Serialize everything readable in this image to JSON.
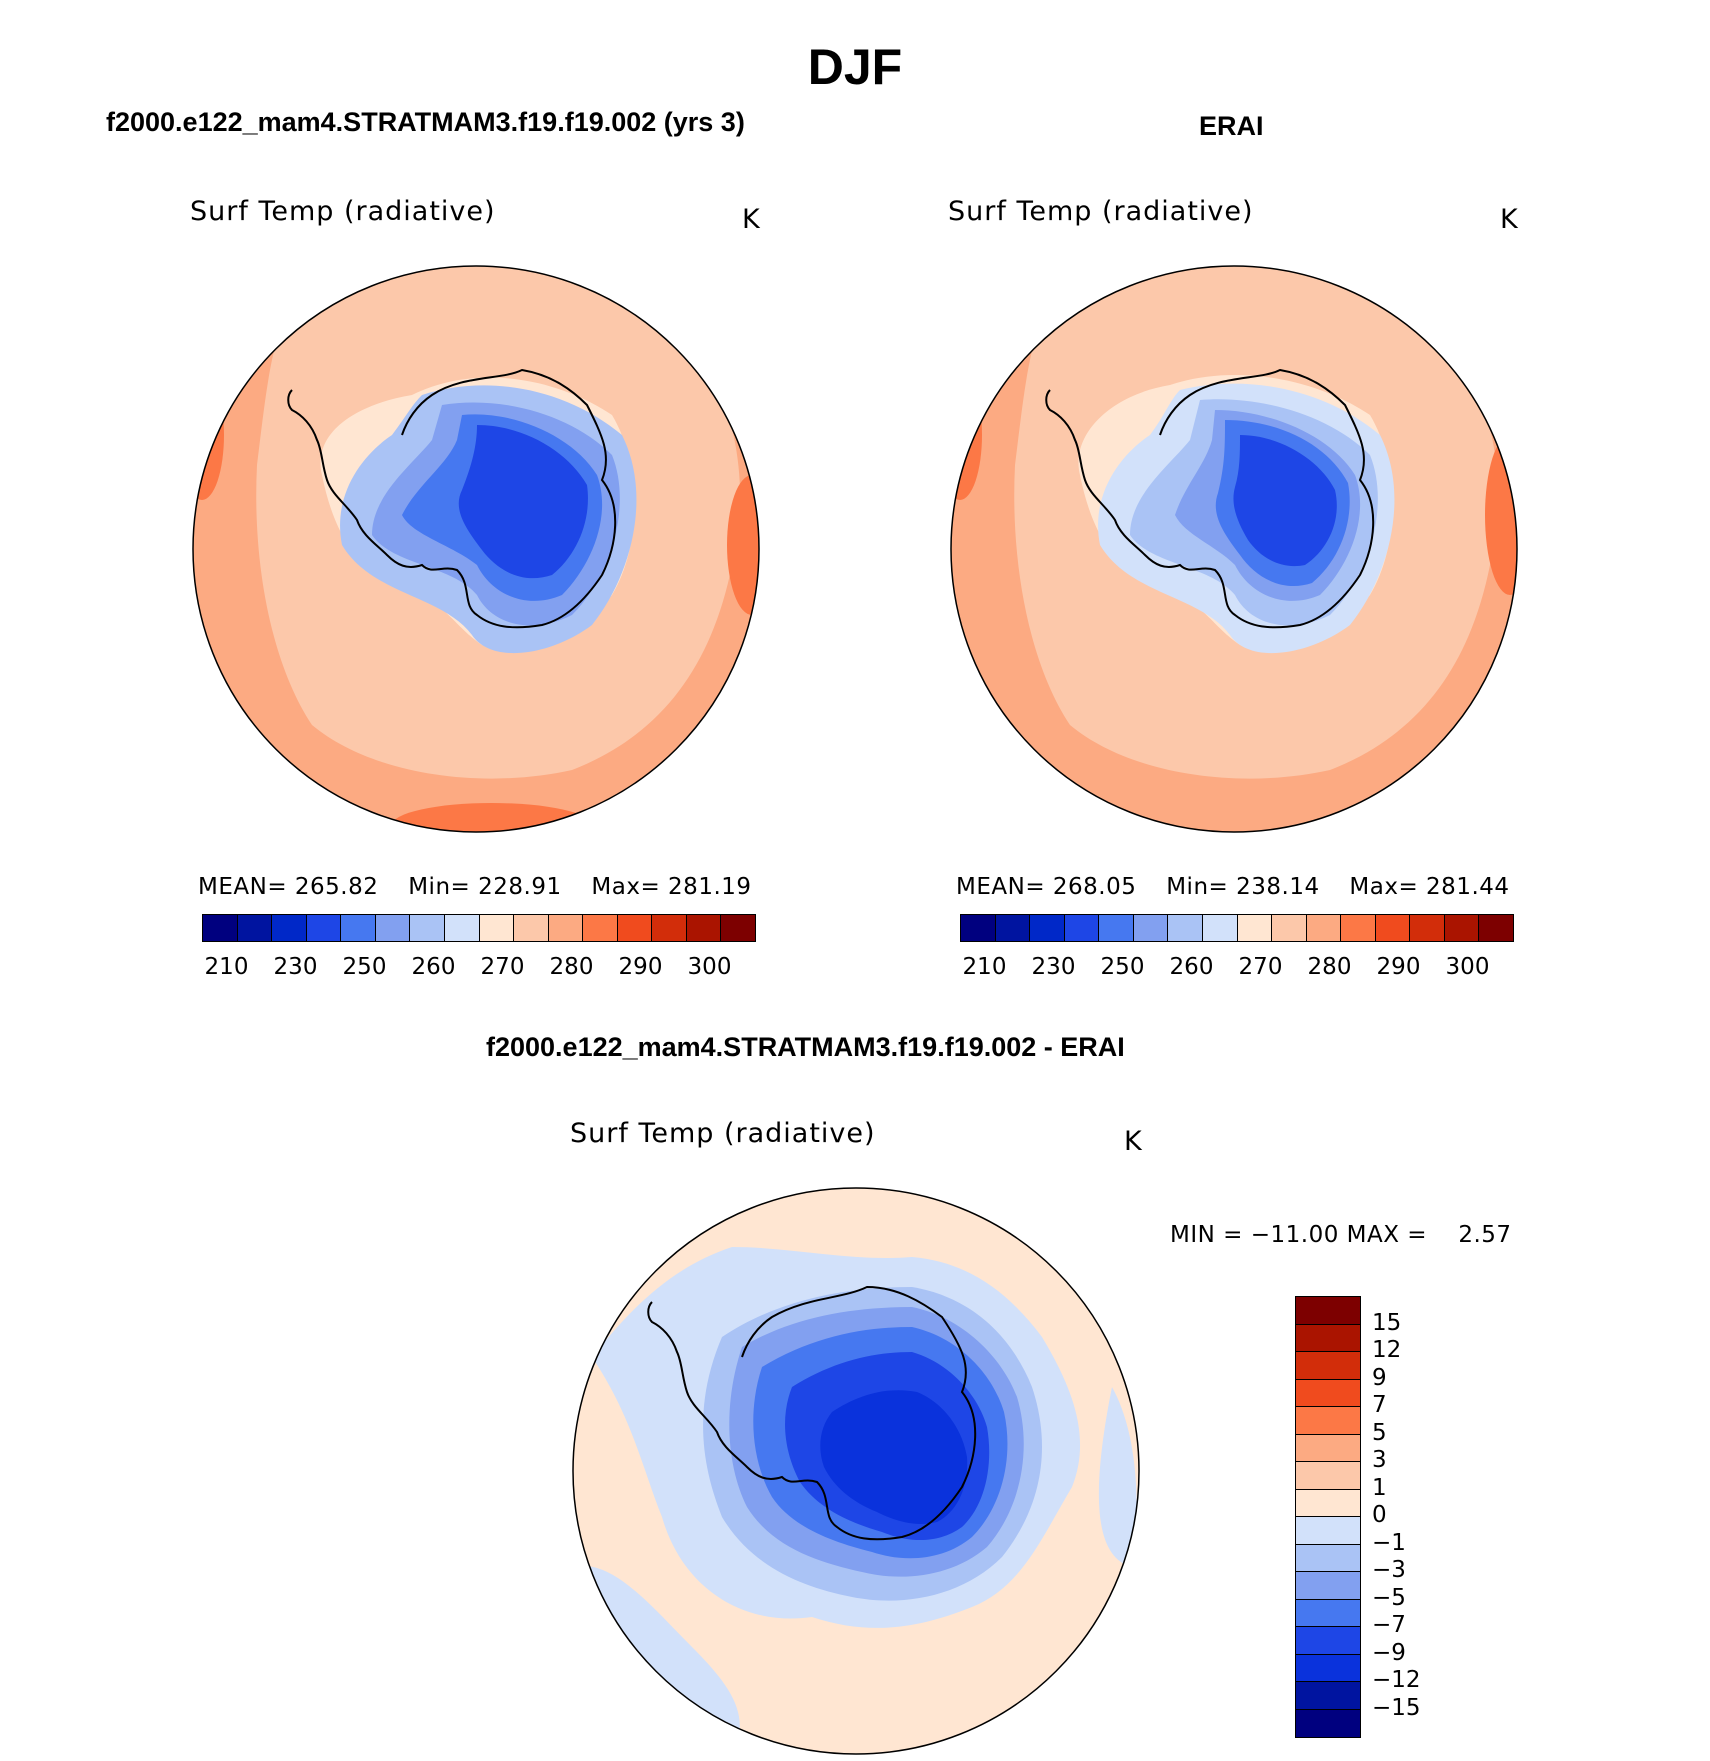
{
  "title": "DJF",
  "panels": [
    {
      "id": "model",
      "heading": "f2000.e122_mam4.STRATMAM3.f19.f19.002 (yrs 3)",
      "field_label": "Surf Temp (radiative)",
      "units": "K",
      "stats": {
        "mean_label": "MEAN=",
        "mean": "265.82",
        "min_label": "Min=",
        "min": "228.91",
        "max_label": "Max=",
        "max": "281.19"
      }
    },
    {
      "id": "obs",
      "heading": "ERAI",
      "field_label": "Surf Temp (radiative)",
      "units": "K",
      "stats": {
        "mean_label": "MEAN=",
        "mean": "268.05",
        "min_label": "Min=",
        "min": "238.14",
        "max_label": "Max=",
        "max": "281.44"
      }
    }
  ],
  "diff_panel": {
    "heading": "f2000.e122_mam4.STRATMAM3.f19.f19.002 - ERAI",
    "field_label": "Surf Temp (radiative)",
    "units": "K",
    "minmax_text": "MIN = −11.00 MAX =    2.57"
  },
  "abs_colorbar": {
    "colors": [
      "#00007f",
      "#0014a0",
      "#0028c8",
      "#1e46e6",
      "#4678f0",
      "#82a0f0",
      "#aac3f5",
      "#d2e1fa",
      "#ffe6d2",
      "#fcc8aa",
      "#fcaa82",
      "#fc7846",
      "#f04b1e",
      "#d22d0a",
      "#aa1400",
      "#7d0000"
    ],
    "tick_labels": [
      "210",
      "230",
      "250",
      "260",
      "270",
      "280",
      "290",
      "300"
    ]
  },
  "diff_colorbar": {
    "colors": [
      "#7d0000",
      "#aa1400",
      "#d22d0a",
      "#f04b1e",
      "#fc7846",
      "#fcaa82",
      "#fcc8aa",
      "#ffe6d2",
      "#d2e1fa",
      "#aac3f5",
      "#82a0f0",
      "#4678f0",
      "#1e46e6",
      "#0a32dc",
      "#0014a0",
      "#00007f"
    ],
    "tick_labels": [
      "15",
      "12",
      "9",
      "7",
      "5",
      "3",
      "1",
      "0",
      "−1",
      "−3",
      "−5",
      "−7",
      "−9",
      "−12",
      "−15"
    ]
  },
  "map_data": {
    "projection": "south-polar-stereographic",
    "region": "Antarctica / Southern Ocean",
    "model_fill": {
      "ocean_outer": "#fcaa82",
      "ocean_inner": "#fcc8aa",
      "coast_band": "#ffe6d2",
      "interior_levels": [
        "#aac3f5",
        "#82a0f0",
        "#4678f0",
        "#1e46e6"
      ]
    },
    "obs_fill": {
      "ocean_outer": "#fcaa82",
      "ocean_inner": "#fcc8aa",
      "coast_band": "#ffe6d2",
      "interior_levels": [
        "#d2e1fa",
        "#aac3f5",
        "#82a0f0",
        "#4678f0",
        "#1e46e6"
      ]
    },
    "diff_fill": {
      "background": "#ffe6d2",
      "ring": "#d2e1fa",
      "interior_levels": [
        "#aac3f5",
        "#82a0f0",
        "#4678f0",
        "#1e46e6",
        "#0a32dc"
      ]
    }
  }
}
